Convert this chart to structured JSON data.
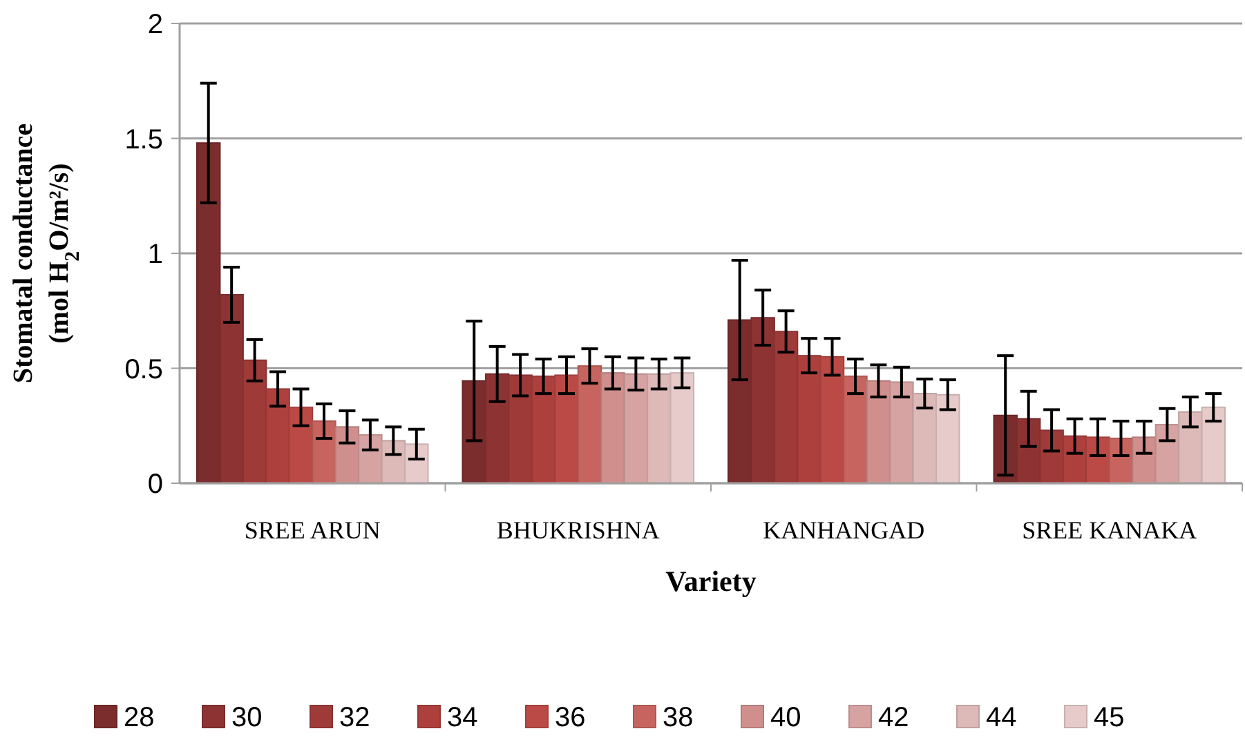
{
  "chart_data": {
    "type": "bar",
    "xlabel": "Variety",
    "ylabel": "Stomatal conductance\n(mol H$_{2}$O/m²/s)",
    "categories": [
      "SREE ARUN",
      "BHUKRISHNA",
      "KANHANGAD",
      "SREE KANAKA"
    ],
    "series": [
      {
        "name": "28",
        "color": "#7b2c2c",
        "values": [
          1.48,
          0.445,
          0.71,
          0.295
        ],
        "errors": [
          0.26,
          0.26,
          0.26,
          0.26
        ]
      },
      {
        "name": "30",
        "color": "#8e3333",
        "values": [
          0.82,
          0.475,
          0.72,
          0.28
        ],
        "errors": [
          0.12,
          0.12,
          0.12,
          0.12
        ]
      },
      {
        "name": "32",
        "color": "#9e3a38",
        "values": [
          0.535,
          0.47,
          0.66,
          0.23
        ],
        "errors": [
          0.09,
          0.09,
          0.09,
          0.09
        ]
      },
      {
        "name": "34",
        "color": "#ad403d",
        "values": [
          0.41,
          0.465,
          0.555,
          0.205
        ],
        "errors": [
          0.075,
          0.075,
          0.075,
          0.075
        ]
      },
      {
        "name": "36",
        "color": "#bb4a46",
        "values": [
          0.33,
          0.47,
          0.55,
          0.2
        ],
        "errors": [
          0.08,
          0.08,
          0.08,
          0.08
        ]
      },
      {
        "name": "38",
        "color": "#c7645f",
        "values": [
          0.27,
          0.51,
          0.465,
          0.195
        ],
        "errors": [
          0.075,
          0.075,
          0.075,
          0.075
        ]
      },
      {
        "name": "40",
        "color": "#d08f8d",
        "values": [
          0.245,
          0.48,
          0.445,
          0.2
        ],
        "errors": [
          0.07,
          0.07,
          0.07,
          0.07
        ]
      },
      {
        "name": "42",
        "color": "#d6a3a2",
        "values": [
          0.21,
          0.475,
          0.44,
          0.255
        ],
        "errors": [
          0.065,
          0.07,
          0.065,
          0.07
        ]
      },
      {
        "name": "44",
        "color": "#ddb9b8",
        "values": [
          0.185,
          0.475,
          0.39,
          0.31
        ],
        "errors": [
          0.06,
          0.065,
          0.063,
          0.065
        ]
      },
      {
        "name": "45",
        "color": "#e6cbca",
        "values": [
          0.17,
          0.48,
          0.385,
          0.33
        ],
        "errors": [
          0.065,
          0.065,
          0.065,
          0.06
        ]
      }
    ],
    "ylim": [
      0,
      2
    ],
    "yticks": [
      0,
      0.5,
      1,
      1.5,
      2
    ],
    "grid": "y",
    "legend": "bottom"
  }
}
